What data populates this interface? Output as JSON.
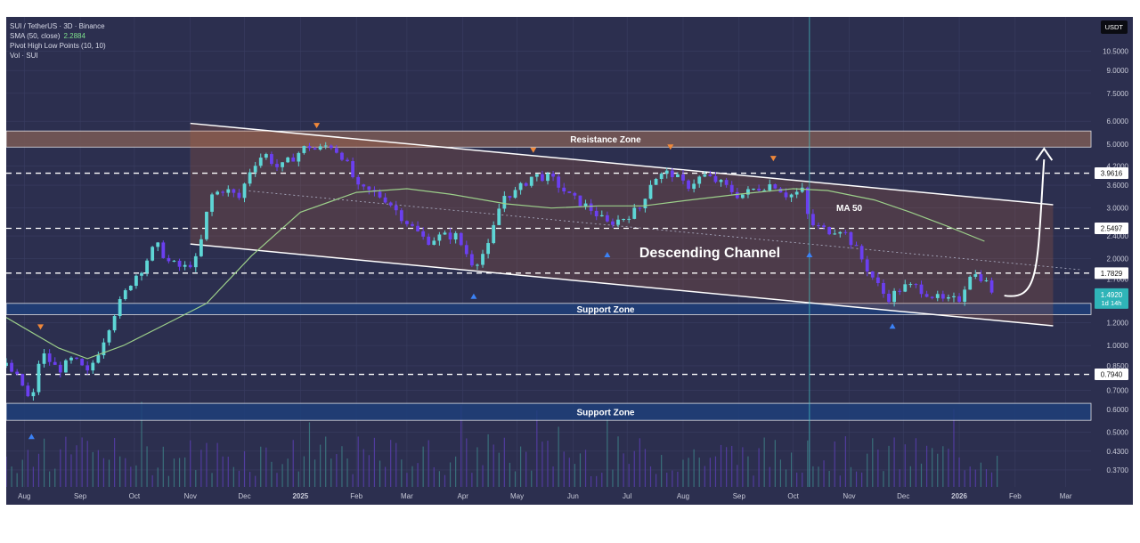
{
  "header": {
    "symbol_line": "SUI / TetherUS · 3D · Binance",
    "sma_label": "SMA (50, close)",
    "sma_value": "2.2884",
    "pivot_label": "Pivot High Low Points (10, 10)",
    "vol_label": "Vol · SUI",
    "currency_button": "USDT"
  },
  "colors": {
    "background": "#2c2f4f",
    "up_candle": "#5ed6d6",
    "down_candle": "#6b3ff0",
    "ma_line": "#9ccf8a",
    "zone_resistance": "#7a5a55",
    "zone_support": "#1e3f7a",
    "pivot_high": "#f0883a",
    "pivot_low": "#3b82f6"
  },
  "chart_data": {
    "type": "candlestick",
    "title": "",
    "y_scale": "log",
    "ylim": [
      0.33,
      12.5
    ],
    "x_range": [
      "2024-07-22",
      "2026-03-15"
    ],
    "y_ticks": [
      "10.5000",
      "9.0000",
      "7.5000",
      "6.0000",
      "5.0000",
      "4.2000",
      "3.6000",
      "3.0000",
      "2.4000",
      "2.0000",
      "1.7000",
      "1.4000",
      "1.2000",
      "1.0000",
      "0.8500",
      "0.7000",
      "0.6000",
      "0.5000",
      "0.4300",
      "0.3700"
    ],
    "x_ticks": [
      {
        "label": "Aug",
        "date": "2024-08-01"
      },
      {
        "label": "Sep",
        "date": "2024-09-01"
      },
      {
        "label": "Oct",
        "date": "2024-10-01"
      },
      {
        "label": "Nov",
        "date": "2024-11-01"
      },
      {
        "label": "Dec",
        "date": "2024-12-01"
      },
      {
        "label": "2025",
        "date": "2025-01-01"
      },
      {
        "label": "Feb",
        "date": "2025-02-01"
      },
      {
        "label": "Mar",
        "date": "2025-03-01"
      },
      {
        "label": "Apr",
        "date": "2025-04-01"
      },
      {
        "label": "May",
        "date": "2025-05-01"
      },
      {
        "label": "Jun",
        "date": "2025-06-01"
      },
      {
        "label": "Jul",
        "date": "2025-07-01"
      },
      {
        "label": "Aug",
        "date": "2025-08-01"
      },
      {
        "label": "Sep",
        "date": "2025-09-01"
      },
      {
        "label": "Oct",
        "date": "2025-10-01"
      },
      {
        "label": "Nov",
        "date": "2025-11-01"
      },
      {
        "label": "Dec",
        "date": "2025-12-01"
      },
      {
        "label": "2026",
        "date": "2026-01-01"
      },
      {
        "label": "Feb",
        "date": "2026-02-01"
      },
      {
        "label": "Mar",
        "date": "2026-03-01"
      }
    ],
    "price_anchors": [
      [
        "2024-07-22",
        0.85
      ],
      [
        "2024-07-30",
        0.75
      ],
      [
        "2024-08-05",
        0.62
      ],
      [
        "2024-08-10",
        0.95
      ],
      [
        "2024-08-20",
        0.82
      ],
      [
        "2024-08-28",
        0.9
      ],
      [
        "2024-09-05",
        0.8
      ],
      [
        "2024-09-12",
        0.98
      ],
      [
        "2024-09-20",
        1.3
      ],
      [
        "2024-09-30",
        1.7
      ],
      [
        "2024-10-05",
        1.85
      ],
      [
        "2024-10-13",
        2.25
      ],
      [
        "2024-10-20",
        1.95
      ],
      [
        "2024-10-28",
        1.85
      ],
      [
        "2024-11-05",
        2.0
      ],
      [
        "2024-11-12",
        3.3
      ],
      [
        "2024-11-20",
        3.5
      ],
      [
        "2024-11-28",
        3.25
      ],
      [
        "2024-12-05",
        4.2
      ],
      [
        "2024-12-12",
        4.65
      ],
      [
        "2024-12-20",
        4.1
      ],
      [
        "2024-12-28",
        4.5
      ],
      [
        "2025-01-05",
        4.95
      ],
      [
        "2025-01-10",
        4.75
      ],
      [
        "2025-01-17",
        5.0
      ],
      [
        "2025-01-25",
        4.5
      ],
      [
        "2025-02-02",
        3.5
      ],
      [
        "2025-02-10",
        3.4
      ],
      [
        "2025-02-18",
        3.2
      ],
      [
        "2025-02-26",
        2.8
      ],
      [
        "2025-03-06",
        2.5
      ],
      [
        "2025-03-12",
        2.3
      ],
      [
        "2025-03-20",
        2.4
      ],
      [
        "2025-03-28",
        2.4
      ],
      [
        "2025-04-07",
        1.9
      ],
      [
        "2025-04-15",
        2.2
      ],
      [
        "2025-04-23",
        3.3
      ],
      [
        "2025-04-30",
        3.4
      ],
      [
        "2025-05-10",
        3.9
      ],
      [
        "2025-05-20",
        3.8
      ],
      [
        "2025-05-30",
        3.3
      ],
      [
        "2025-06-10",
        3.0
      ],
      [
        "2025-06-20",
        2.65
      ],
      [
        "2025-06-28",
        2.75
      ],
      [
        "2025-07-08",
        3.0
      ],
      [
        "2025-07-15",
        3.8
      ],
      [
        "2025-07-25",
        4.0
      ],
      [
        "2025-08-03",
        3.55
      ],
      [
        "2025-08-12",
        3.9
      ],
      [
        "2025-08-22",
        3.65
      ],
      [
        "2025-09-01",
        3.3
      ],
      [
        "2025-09-10",
        3.5
      ],
      [
        "2025-09-20",
        3.65
      ],
      [
        "2025-09-28",
        3.3
      ],
      [
        "2025-10-06",
        3.45
      ],
      [
        "2025-10-10",
        2.65
      ],
      [
        "2025-10-20",
        2.5
      ],
      [
        "2025-10-28",
        2.55
      ],
      [
        "2025-11-05",
        2.15
      ],
      [
        "2025-11-12",
        1.8
      ],
      [
        "2025-11-22",
        1.45
      ],
      [
        "2025-12-01",
        1.6
      ],
      [
        "2025-12-08",
        1.6
      ],
      [
        "2025-12-16",
        1.5
      ],
      [
        "2025-12-24",
        1.42
      ],
      [
        "2026-01-01",
        1.45
      ],
      [
        "2026-01-07",
        1.78
      ],
      [
        "2026-01-14",
        1.72
      ],
      [
        "2026-01-21",
        1.49
      ]
    ],
    "ma50_anchors": [
      [
        "2024-07-22",
        1.25
      ],
      [
        "2024-08-20",
        0.98
      ],
      [
        "2024-09-05",
        0.9
      ],
      [
        "2024-09-25",
        1.0
      ],
      [
        "2024-10-20",
        1.2
      ],
      [
        "2024-11-10",
        1.4
      ],
      [
        "2024-12-05",
        2.05
      ],
      [
        "2025-01-01",
        2.9
      ],
      [
        "2025-02-01",
        3.4
      ],
      [
        "2025-03-01",
        3.5
      ],
      [
        "2025-03-25",
        3.35
      ],
      [
        "2025-04-25",
        3.1
      ],
      [
        "2025-05-20",
        3.0
      ],
      [
        "2025-06-15",
        3.05
      ],
      [
        "2025-07-10",
        3.05
      ],
      [
        "2025-08-05",
        3.2
      ],
      [
        "2025-09-01",
        3.35
      ],
      [
        "2025-10-01",
        3.5
      ],
      [
        "2025-10-20",
        3.45
      ],
      [
        "2025-11-15",
        3.2
      ],
      [
        "2025-12-05",
        2.9
      ],
      [
        "2025-12-25",
        2.6
      ],
      [
        "2026-01-15",
        2.3
      ]
    ],
    "descending_channel": {
      "upper": [
        [
          "2024-11-01",
          5.9
        ],
        [
          "2026-02-22",
          3.08
        ]
      ],
      "lower": [
        [
          "2024-11-01",
          2.25
        ],
        [
          "2026-02-22",
          1.17
        ]
      ],
      "mid": [
        [
          "2024-12-01",
          3.45
        ],
        [
          "2026-03-10",
          1.83
        ]
      ]
    },
    "horizontal_levels": [
      {
        "value": 3.9616,
        "label": "3.9616"
      },
      {
        "value": 2.5497,
        "label": "2.5497"
      },
      {
        "value": 1.7829,
        "label": "1.7829"
      },
      {
        "value": 0.794,
        "label": "0.7940"
      }
    ],
    "last_price": {
      "value": 1.492,
      "label": "1.4920",
      "countdown": "1d 14h"
    },
    "zones": [
      {
        "label": "Resistance Zone",
        "low": 4.88,
        "high": 5.55,
        "type": "resistance"
      },
      {
        "label": "Support Zone",
        "low": 1.28,
        "high": 1.4,
        "type": "support"
      },
      {
        "label": "Support Zone",
        "low": 0.55,
        "high": 0.63,
        "type": "support"
      }
    ],
    "pivot_highs": [
      "2024-08-10",
      "2025-01-10",
      "2025-05-10",
      "2025-07-25",
      "2025-09-20"
    ],
    "pivot_lows": [
      "2024-08-05",
      "2025-04-07",
      "2025-06-20",
      "2025-10-10",
      "2025-11-25"
    ],
    "volume_scale_max": 100,
    "annotations": {
      "channel_label": "Descending Channel",
      "ma_label": "MA 50",
      "projection_arrow": {
        "from": [
          "2026-01-23",
          1.49
        ],
        "to": [
          "2026-02-17",
          4.75
        ]
      }
    }
  }
}
